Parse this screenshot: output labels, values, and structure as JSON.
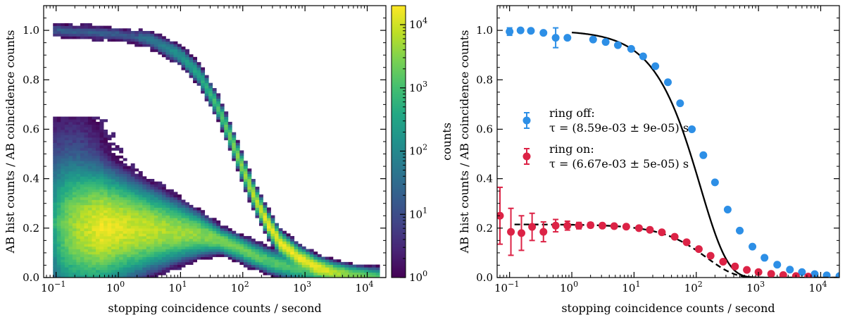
{
  "chart_data": [
    {
      "type": "heatmap",
      "title": "",
      "xlabel": "stopping coincidence counts / second",
      "ylabel": "AB hist counts / AB coincidence counts",
      "xscale": "log",
      "xlim_log10": [
        -1.2,
        4.3
      ],
      "ylim": [
        0,
        1.1
      ],
      "x_ticks": [
        {
          "value": 0.1,
          "base": "10",
          "exp": "−1"
        },
        {
          "value": 1,
          "base": "10",
          "exp": "0"
        },
        {
          "value": 10,
          "base": "10",
          "exp": "1"
        },
        {
          "value": 100,
          "base": "10",
          "exp": "2"
        },
        {
          "value": 1000,
          "base": "10",
          "exp": "3"
        },
        {
          "value": 10000,
          "base": "10",
          "exp": "4"
        }
      ],
      "y_ticks": [
        "0.0",
        "0.2",
        "0.4",
        "0.6",
        "0.8",
        "1.0"
      ],
      "colorbar": {
        "label": "counts",
        "scale": "log",
        "range": [
          1,
          20000
        ],
        "ticks": [
          {
            "value": 1,
            "base": "10",
            "exp": "0"
          },
          {
            "value": 10,
            "base": "10",
            "exp": "1"
          },
          {
            "value": 100,
            "base": "10",
            "exp": "2"
          },
          {
            "value": 1000,
            "base": "10",
            "exp": "3"
          },
          {
            "value": 10000,
            "base": "10",
            "exp": "4"
          }
        ],
        "colormap": "viridis"
      },
      "bands": [
        {
          "name": "ring off",
          "path": [
            [
              -1.0,
              1.0
            ],
            [
              0.0,
              0.985
            ],
            [
              0.5,
              0.965
            ],
            [
              1.0,
              0.9
            ],
            [
              1.3,
              0.82
            ],
            [
              1.6,
              0.69
            ],
            [
              1.8,
              0.57
            ],
            [
              2.0,
              0.44
            ],
            [
              2.2,
              0.32
            ],
            [
              2.4,
              0.22
            ],
            [
              2.6,
              0.14
            ],
            [
              2.9,
              0.08
            ],
            [
              3.2,
              0.04
            ],
            [
              3.5,
              0.02
            ],
            [
              3.8,
              0.01
            ],
            [
              4.1,
              0.005
            ]
          ]
        },
        {
          "name": "ring on",
          "path": [
            [
              -0.9,
              0.2
            ],
            [
              -0.6,
              0.2
            ],
            [
              0.0,
              0.2
            ],
            [
              0.5,
              0.195
            ],
            [
              1.0,
              0.185
            ],
            [
              1.3,
              0.175
            ],
            [
              1.6,
              0.155
            ],
            [
              1.9,
              0.125
            ],
            [
              2.2,
              0.09
            ],
            [
              2.5,
              0.06
            ],
            [
              2.8,
              0.04
            ],
            [
              3.1,
              0.02
            ],
            [
              3.3,
              0.01
            ]
          ]
        }
      ]
    },
    {
      "type": "scatter",
      "title": "",
      "xlabel": "stopping coincidence counts / second",
      "ylabel": "AB hist counts / AB coincidence counts",
      "xscale": "log",
      "xlim_log10": [
        -1.2,
        4.3
      ],
      "ylim": [
        0,
        1.1
      ],
      "x_ticks": [
        {
          "value": 0.1,
          "base": "10",
          "exp": "−1"
        },
        {
          "value": 1,
          "base": "10",
          "exp": "0"
        },
        {
          "value": 10,
          "base": "10",
          "exp": "1"
        },
        {
          "value": 100,
          "base": "10",
          "exp": "2"
        },
        {
          "value": 1000,
          "base": "10",
          "exp": "3"
        },
        {
          "value": 10000,
          "base": "10",
          "exp": "4"
        }
      ],
      "y_ticks": [
        "0.0",
        "0.2",
        "0.4",
        "0.6",
        "0.8",
        "1.0"
      ],
      "series": [
        {
          "name": "ring off",
          "legend_line1": "ring off:",
          "legend_line2": "τ = (8.59e-03 ± 9e-05) s",
          "color": "#2d8fe6",
          "fit_style": "solid",
          "fit_tau": 0.00859,
          "fit_amplitude": 1.0,
          "fit_range": [
            1,
            20000
          ],
          "points": [
            {
              "x": 0.1,
              "y": 0.995,
              "err": 0.015
            },
            {
              "x": 0.15,
              "y": 1.0,
              "err": 0.008
            },
            {
              "x": 0.22,
              "y": 0.998,
              "err": 0.007
            },
            {
              "x": 0.35,
              "y": 0.99,
              "err": 0.007
            },
            {
              "x": 0.55,
              "y": 0.97,
              "err": 0.04
            },
            {
              "x": 0.85,
              "y": 0.97,
              "err": 0.006
            },
            {
              "x": 2.2,
              "y": 0.963,
              "err": 0.004
            },
            {
              "x": 3.5,
              "y": 0.953,
              "err": 0.004
            },
            {
              "x": 5.5,
              "y": 0.94,
              "err": 0.004
            },
            {
              "x": 9,
              "y": 0.925,
              "err": 0.004
            },
            {
              "x": 14,
              "y": 0.895,
              "err": 0.005
            },
            {
              "x": 22,
              "y": 0.855,
              "err": 0.005
            },
            {
              "x": 35,
              "y": 0.79,
              "err": 0.006
            },
            {
              "x": 55,
              "y": 0.705,
              "err": 0.006
            },
            {
              "x": 85,
              "y": 0.6,
              "err": 0.007
            },
            {
              "x": 130,
              "y": 0.495,
              "err": 0.007
            },
            {
              "x": 200,
              "y": 0.385,
              "err": 0.007
            },
            {
              "x": 320,
              "y": 0.275,
              "err": 0.006
            },
            {
              "x": 500,
              "y": 0.19,
              "err": 0.006
            },
            {
              "x": 800,
              "y": 0.125,
              "err": 0.005
            },
            {
              "x": 1250,
              "y": 0.08,
              "err": 0.004
            },
            {
              "x": 2000,
              "y": 0.052,
              "err": 0.004
            },
            {
              "x": 3200,
              "y": 0.032,
              "err": 0.003
            },
            {
              "x": 5000,
              "y": 0.022,
              "err": 0.003
            },
            {
              "x": 8000,
              "y": 0.014,
              "err": 0.003
            },
            {
              "x": 12500,
              "y": 0.009,
              "err": 0.002
            },
            {
              "x": 20000,
              "y": 0.006,
              "err": 0.002
            }
          ]
        },
        {
          "name": "ring on",
          "legend_line1": "ring on:",
          "legend_line2": "τ = (6.67e-03 ± 5e-05) s",
          "color": "#dc2346",
          "fit_style": "dashed",
          "fit_tau": 0.00667,
          "fit_amplitude": 0.215,
          "fit_range": [
            0.12,
            20000
          ],
          "points": [
            {
              "x": 0.07,
              "y": 0.25,
              "err": 0.115
            },
            {
              "x": 0.105,
              "y": 0.185,
              "err": 0.095
            },
            {
              "x": 0.155,
              "y": 0.18,
              "err": 0.07
            },
            {
              "x": 0.23,
              "y": 0.205,
              "err": 0.055
            },
            {
              "x": 0.35,
              "y": 0.185,
              "err": 0.04
            },
            {
              "x": 0.55,
              "y": 0.21,
              "err": 0.025
            },
            {
              "x": 0.85,
              "y": 0.21,
              "err": 0.018
            },
            {
              "x": 1.3,
              "y": 0.21,
              "err": 0.013
            },
            {
              "x": 2,
              "y": 0.212,
              "err": 0.01
            },
            {
              "x": 3.1,
              "y": 0.21,
              "err": 0.008
            },
            {
              "x": 4.8,
              "y": 0.208,
              "err": 0.007
            },
            {
              "x": 7.5,
              "y": 0.206,
              "err": 0.006
            },
            {
              "x": 12,
              "y": 0.2,
              "err": 0.005
            },
            {
              "x": 18,
              "y": 0.193,
              "err": 0.005
            },
            {
              "x": 28,
              "y": 0.183,
              "err": 0.004
            },
            {
              "x": 45,
              "y": 0.165,
              "err": 0.004
            },
            {
              "x": 70,
              "y": 0.143,
              "err": 0.004
            },
            {
              "x": 110,
              "y": 0.115,
              "err": 0.004
            },
            {
              "x": 170,
              "y": 0.088,
              "err": 0.004
            },
            {
              "x": 270,
              "y": 0.064,
              "err": 0.003
            },
            {
              "x": 420,
              "y": 0.045,
              "err": 0.003
            },
            {
              "x": 650,
              "y": 0.031,
              "err": 0.003
            },
            {
              "x": 1000,
              "y": 0.022,
              "err": 0.003
            },
            {
              "x": 1600,
              "y": 0.015,
              "err": 0.003
            },
            {
              "x": 2500,
              "y": 0.01,
              "err": 0.002
            },
            {
              "x": 4000,
              "y": 0.006,
              "err": 0.002
            },
            {
              "x": 6300,
              "y": 0.004,
              "err": 0.002
            }
          ]
        }
      ]
    }
  ]
}
